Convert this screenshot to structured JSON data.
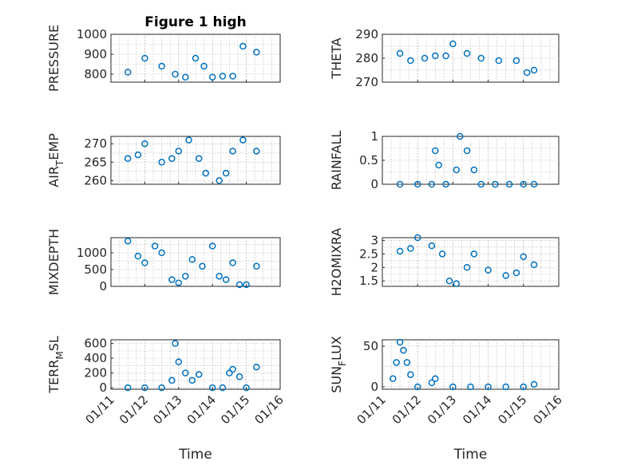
{
  "figure_title": "Figure 1 high",
  "colors": {
    "marker": "#0072BD",
    "axis": "#262626",
    "grid": "#b0b0b0"
  },
  "x_ticks": [
    "01/11",
    "01/12",
    "01/13",
    "01/14",
    "01/15",
    "01/16"
  ],
  "x_label": "Time",
  "chart_data": [
    {
      "id": "pressure",
      "type": "scatter",
      "title": "Figure 1 high",
      "ylabel": "PRESSURE",
      "ylabel_sub": "",
      "ylabel_tail": "",
      "xlabel": "",
      "xlim": [
        11,
        16
      ],
      "ylim": [
        760,
        1000
      ],
      "yticks": [
        800,
        900,
        1000
      ],
      "ytick_labels": [
        "800",
        "900",
        "1000"
      ],
      "grid": true,
      "x": [
        11.5,
        12.0,
        12.5,
        12.9,
        13.2,
        13.5,
        13.75,
        14.0,
        14.3,
        14.6,
        14.9,
        15.3
      ],
      "y": [
        810,
        880,
        840,
        800,
        785,
        880,
        840,
        785,
        790,
        790,
        940,
        910
      ]
    },
    {
      "id": "theta",
      "type": "scatter",
      "title": "",
      "ylabel": "THETA",
      "ylabel_sub": "",
      "ylabel_tail": "",
      "xlabel": "",
      "xlim": [
        11,
        16
      ],
      "ylim": [
        270,
        290
      ],
      "yticks": [
        270,
        280,
        290
      ],
      "ytick_labels": [
        "270",
        "280",
        "290"
      ],
      "grid": true,
      "x": [
        11.5,
        11.8,
        12.2,
        12.5,
        12.8,
        13.0,
        13.4,
        13.8,
        14.3,
        14.8,
        15.1,
        15.3
      ],
      "y": [
        282,
        279,
        280,
        281,
        281,
        286,
        282,
        280,
        279,
        279,
        274,
        275
      ]
    },
    {
      "id": "air_temp",
      "type": "scatter",
      "title": "",
      "ylabel": "AIR",
      "ylabel_sub": "T",
      "ylabel_tail": "EMP",
      "xlabel": "",
      "xlim": [
        11,
        16
      ],
      "ylim": [
        259,
        272
      ],
      "yticks": [
        260,
        265,
        270
      ],
      "ytick_labels": [
        "260",
        "265",
        "270"
      ],
      "grid": true,
      "x": [
        11.5,
        11.8,
        12.0,
        12.5,
        12.8,
        13.0,
        13.3,
        13.6,
        13.8,
        14.2,
        14.4,
        14.6,
        14.9,
        15.3
      ],
      "y": [
        266,
        267,
        270,
        265,
        266,
        268,
        271,
        266,
        262,
        260,
        262,
        268,
        271,
        268
      ]
    },
    {
      "id": "rainfall",
      "type": "scatter",
      "title": "",
      "ylabel": "RAINFALL",
      "ylabel_sub": "",
      "ylabel_tail": "",
      "xlabel": "",
      "xlim": [
        11,
        16
      ],
      "ylim": [
        0,
        1
      ],
      "yticks": [
        0,
        0.5,
        1
      ],
      "ytick_labels": [
        "0",
        "0.5",
        "1"
      ],
      "grid": true,
      "x": [
        11.5,
        12.0,
        12.4,
        12.5,
        12.6,
        12.8,
        13.1,
        13.2,
        13.4,
        13.6,
        13.8,
        14.2,
        14.6,
        15.0,
        15.3
      ],
      "y": [
        0,
        0,
        0,
        0.7,
        0.4,
        0,
        0.3,
        1,
        0.7,
        0.3,
        0,
        0,
        0,
        0,
        0
      ]
    },
    {
      "id": "mixdepth",
      "type": "scatter",
      "title": "",
      "ylabel": "MIXDEPTH",
      "ylabel_sub": "",
      "ylabel_tail": "",
      "xlabel": "",
      "xlim": [
        11,
        16
      ],
      "ylim": [
        0,
        1450
      ],
      "yticks": [
        0,
        500,
        1000
      ],
      "ytick_labels": [
        "0",
        "500",
        "1000"
      ],
      "grid": true,
      "x": [
        11.5,
        11.8,
        12.0,
        12.3,
        12.5,
        12.8,
        13.0,
        13.2,
        13.4,
        13.7,
        14.0,
        14.2,
        14.4,
        14.6,
        14.8,
        15.0,
        15.3
      ],
      "y": [
        1350,
        900,
        700,
        1200,
        1000,
        200,
        100,
        300,
        800,
        600,
        1200,
        300,
        200,
        700,
        50,
        50,
        600
      ]
    },
    {
      "id": "h2omixra",
      "type": "scatter",
      "title": "",
      "ylabel": "H2OMIXRA",
      "ylabel_sub": "",
      "ylabel_tail": "",
      "xlabel": "",
      "xlim": [
        11,
        16
      ],
      "ylim": [
        1.3,
        3.1
      ],
      "yticks": [
        1.5,
        2,
        2.5,
        3
      ],
      "ytick_labels": [
        "1.5",
        "2",
        "2.5",
        "3"
      ],
      "grid": true,
      "x": [
        11.5,
        11.8,
        12.0,
        12.4,
        12.7,
        12.9,
        13.1,
        13.4,
        13.6,
        14.0,
        14.5,
        14.8,
        15.0,
        15.3
      ],
      "y": [
        2.6,
        2.7,
        3.1,
        2.8,
        2.5,
        1.5,
        1.4,
        2.0,
        2.5,
        1.9,
        1.7,
        1.8,
        2.4,
        2.1
      ]
    },
    {
      "id": "terr_msl",
      "type": "scatter",
      "title": "",
      "ylabel": "TERR",
      "ylabel_sub": "M",
      "ylabel_tail": "SL",
      "xlabel": "Time",
      "xlim": [
        11,
        16
      ],
      "ylim": [
        -20,
        650
      ],
      "yticks": [
        0,
        200,
        400,
        600
      ],
      "ytick_labels": [
        "0",
        "200",
        "400",
        "600"
      ],
      "grid": true,
      "x": [
        11.5,
        12.0,
        12.5,
        12.8,
        12.9,
        13.0,
        13.2,
        13.4,
        13.6,
        14.0,
        14.3,
        14.5,
        14.6,
        14.8,
        15.0,
        15.3
      ],
      "y": [
        0,
        0,
        0,
        100,
        600,
        350,
        200,
        100,
        180,
        0,
        0,
        200,
        250,
        150,
        0,
        280
      ]
    },
    {
      "id": "sun_flux",
      "type": "scatter",
      "title": "",
      "ylabel": "SUN",
      "ylabel_sub": "F",
      "ylabel_tail": "LUX",
      "xlabel": "Time",
      "xlim": [
        11,
        16
      ],
      "ylim": [
        -3,
        58
      ],
      "yticks": [
        0,
        50
      ],
      "ytick_labels": [
        "0",
        "50"
      ],
      "grid": true,
      "x": [
        11.3,
        11.4,
        11.5,
        11.6,
        11.7,
        11.8,
        12.0,
        12.4,
        12.5,
        13.0,
        13.5,
        14.0,
        14.5,
        15.0,
        15.3
      ],
      "y": [
        10,
        30,
        55,
        45,
        30,
        15,
        0,
        5,
        10,
        0,
        0,
        0,
        0,
        0,
        3
      ]
    }
  ]
}
